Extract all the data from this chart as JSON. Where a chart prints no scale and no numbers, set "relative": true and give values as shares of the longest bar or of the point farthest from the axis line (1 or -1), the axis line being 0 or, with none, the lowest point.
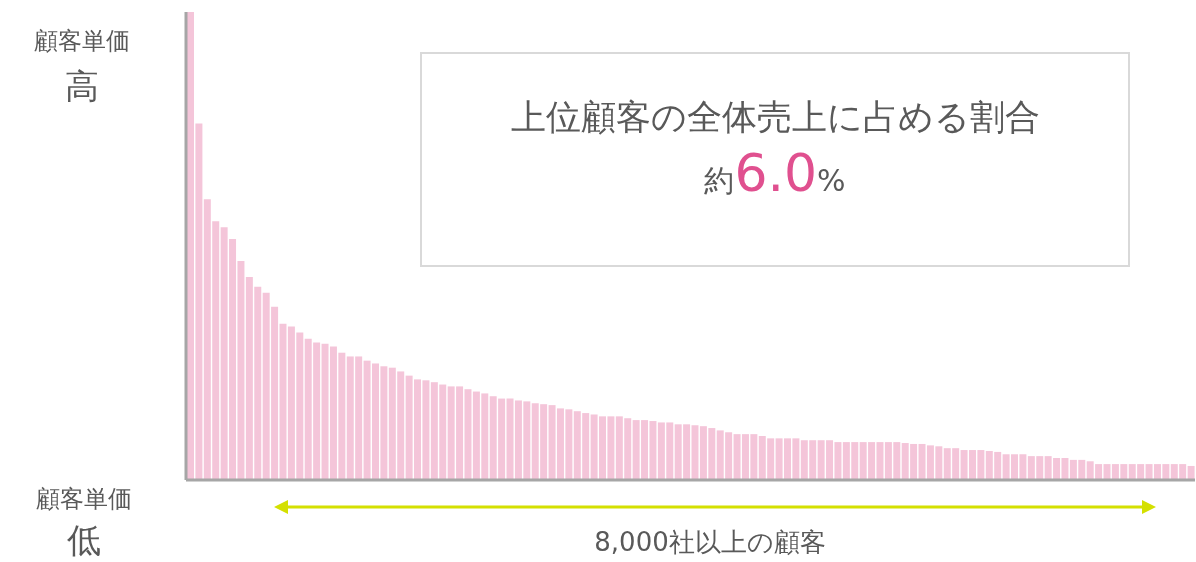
{
  "chart_data": {
    "type": "bar",
    "relative": true,
    "title": "上位顧客の全体売上に占める割合",
    "subtitle": "約6.0%",
    "xlabel": "8,000社以上の顧客",
    "annotations": [
      "顧客単価",
      "高",
      "顧客単価",
      "低"
    ],
    "color": "#f4c5d9",
    "categories": [
      null,
      null,
      null,
      null,
      null,
      null,
      null,
      null,
      null,
      null,
      null,
      null,
      null,
      null,
      null,
      null,
      null,
      null,
      null,
      null,
      null,
      null,
      null,
      null,
      null,
      null,
      null,
      null,
      null,
      null,
      null,
      null,
      null,
      null,
      null,
      null,
      null,
      null,
      null,
      null,
      null,
      null,
      null,
      null,
      null,
      null,
      null,
      null,
      null,
      null,
      null,
      null,
      null,
      null,
      null,
      null,
      null,
      null,
      null,
      null,
      null,
      null,
      null,
      null,
      null,
      null,
      null,
      null,
      null,
      null,
      null,
      null,
      null,
      null,
      null,
      null,
      null,
      null,
      null,
      null,
      null,
      null,
      null,
      null,
      null,
      null,
      null,
      null,
      null,
      null,
      null,
      null,
      null,
      null,
      null,
      null,
      null,
      null,
      null,
      null,
      null,
      null,
      null,
      null,
      null,
      null,
      null,
      null,
      null,
      null,
      null,
      null,
      null,
      null,
      null,
      null,
      null,
      null,
      null,
      null
    ],
    "values": [
      1,
      0.762,
      0.6,
      0.553,
      0.54,
      0.515,
      0.468,
      0.434,
      0.413,
      0.4,
      0.37,
      0.334,
      0.328,
      0.315,
      0.302,
      0.294,
      0.291,
      0.285,
      0.272,
      0.264,
      0.264,
      0.255,
      0.249,
      0.243,
      0.24,
      0.232,
      0.223,
      0.215,
      0.213,
      0.209,
      0.204,
      0.2,
      0.2,
      0.194,
      0.189,
      0.185,
      0.179,
      0.174,
      0.174,
      0.17,
      0.168,
      0.164,
      0.162,
      0.16,
      0.153,
      0.151,
      0.147,
      0.143,
      0.14,
      0.136,
      0.136,
      0.136,
      0.132,
      0.128,
      0.128,
      0.126,
      0.123,
      0.123,
      0.119,
      0.119,
      0.117,
      0.115,
      0.111,
      0.106,
      0.102,
      0.098,
      0.098,
      0.098,
      0.094,
      0.089,
      0.089,
      0.089,
      0.089,
      0.085,
      0.085,
      0.085,
      0.085,
      0.081,
      0.081,
      0.081,
      0.081,
      0.081,
      0.081,
      0.081,
      0.081,
      0.079,
      0.077,
      0.077,
      0.074,
      0.072,
      0.068,
      0.068,
      0.064,
      0.064,
      0.064,
      0.062,
      0.06,
      0.055,
      0.055,
      0.055,
      0.051,
      0.051,
      0.051,
      0.047,
      0.047,
      0.043,
      0.043,
      0.04,
      0.034,
      0.034,
      0.034,
      0.034,
      0.034,
      0.034,
      0.034,
      0.034,
      0.034,
      0.034,
      0.034,
      0.03
    ]
  }
}
